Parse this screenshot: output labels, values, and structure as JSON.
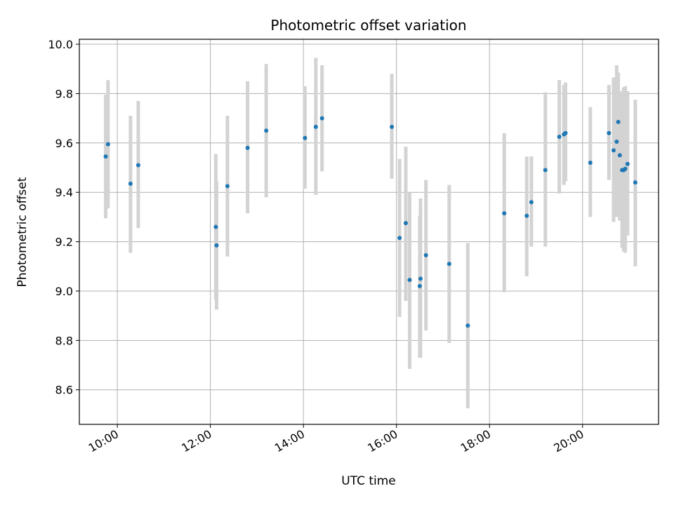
{
  "chart_data": {
    "type": "scatter",
    "title": "Photometric offset variation",
    "xlabel": "UTC time",
    "ylabel": "Photometric offset",
    "grid": true,
    "error_bar_color": "#d3d3d3",
    "marker_color": "#1f77b4",
    "xlim": [
      "09:11",
      "21:38"
    ],
    "ylim": [
      8.46,
      10.02
    ],
    "x_ticks": [
      "10:00",
      "12:00",
      "14:00",
      "16:00",
      "18:00",
      "20:00"
    ],
    "y_ticks": [
      "8.6",
      "8.8",
      "9.0",
      "9.2",
      "9.4",
      "9.6",
      "9.8",
      "10.0"
    ],
    "series": [
      {
        "points": [
          {
            "x": "09:45",
            "y": 9.545,
            "err_low": 9.295,
            "err_high": 9.795
          },
          {
            "x": "09:48",
            "y": 9.595,
            "err_low": 9.335,
            "err_high": 9.855
          },
          {
            "x": "10:17",
            "y": 9.435,
            "err_low": 9.155,
            "err_high": 9.71
          },
          {
            "x": "10:27",
            "y": 9.51,
            "err_low": 9.255,
            "err_high": 9.77
          },
          {
            "x": "12:07",
            "y": 9.26,
            "err_low": 8.965,
            "err_high": 9.555
          },
          {
            "x": "12:08",
            "y": 9.185,
            "err_low": 8.925,
            "err_high": 9.445
          },
          {
            "x": "12:22",
            "y": 9.425,
            "err_low": 9.14,
            "err_high": 9.71
          },
          {
            "x": "12:48",
            "y": 9.58,
            "err_low": 9.315,
            "err_high": 9.85
          },
          {
            "x": "13:12",
            "y": 9.65,
            "err_low": 9.38,
            "err_high": 9.92
          },
          {
            "x": "14:02",
            "y": 9.62,
            "err_low": 9.415,
            "err_high": 9.83
          },
          {
            "x": "14:16",
            "y": 9.665,
            "err_low": 9.39,
            "err_high": 9.945
          },
          {
            "x": "14:24",
            "y": 9.7,
            "err_low": 9.485,
            "err_high": 9.915
          },
          {
            "x": "15:54",
            "y": 9.665,
            "err_low": 9.455,
            "err_high": 9.88
          },
          {
            "x": "16:04",
            "y": 9.215,
            "err_low": 8.895,
            "err_high": 9.535
          },
          {
            "x": "16:12",
            "y": 9.275,
            "err_low": 8.96,
            "err_high": 9.585
          },
          {
            "x": "16:17",
            "y": 9.045,
            "err_low": 8.685,
            "err_high": 9.4
          },
          {
            "x": "16:30",
            "y": 9.02,
            "err_low": 8.73,
            "err_high": 9.305
          },
          {
            "x": "16:31",
            "y": 9.05,
            "err_low": 8.73,
            "err_high": 9.375
          },
          {
            "x": "16:38",
            "y": 9.145,
            "err_low": 8.84,
            "err_high": 9.45
          },
          {
            "x": "17:08",
            "y": 9.11,
            "err_low": 8.79,
            "err_high": 9.43
          },
          {
            "x": "17:32",
            "y": 8.86,
            "err_low": 8.525,
            "err_high": 9.195
          },
          {
            "x": "18:19",
            "y": 9.315,
            "err_low": 8.995,
            "err_high": 9.64
          },
          {
            "x": "18:48",
            "y": 9.305,
            "err_low": 9.06,
            "err_high": 9.545
          },
          {
            "x": "18:54",
            "y": 9.36,
            "err_low": 9.18,
            "err_high": 9.545
          },
          {
            "x": "19:12",
            "y": 9.49,
            "err_low": 9.18,
            "err_high": 9.805
          },
          {
            "x": "19:30",
            "y": 9.625,
            "err_low": 9.395,
            "err_high": 9.855
          },
          {
            "x": "19:36",
            "y": 9.635,
            "err_low": 9.43,
            "err_high": 9.835
          },
          {
            "x": "19:38",
            "y": 9.64,
            "err_low": 9.445,
            "err_high": 9.845
          },
          {
            "x": "20:10",
            "y": 9.52,
            "err_low": 9.3,
            "err_high": 9.745
          },
          {
            "x": "20:34",
            "y": 9.64,
            "err_low": 9.45,
            "err_high": 9.835
          },
          {
            "x": "20:40",
            "y": 9.57,
            "err_low": 9.28,
            "err_high": 9.865
          },
          {
            "x": "20:44",
            "y": 9.605,
            "err_low": 9.3,
            "err_high": 9.915
          },
          {
            "x": "20:46",
            "y": 9.685,
            "err_low": 9.49,
            "err_high": 9.885
          },
          {
            "x": "20:48",
            "y": 9.55,
            "err_low": 9.285,
            "err_high": 9.81
          },
          {
            "x": "20:51",
            "y": 9.49,
            "err_low": 9.175,
            "err_high": 9.805
          },
          {
            "x": "20:53",
            "y": 9.49,
            "err_low": 9.16,
            "err_high": 9.825
          },
          {
            "x": "20:55",
            "y": 9.495,
            "err_low": 9.155,
            "err_high": 9.83
          },
          {
            "x": "20:58",
            "y": 9.515,
            "err_low": 9.225,
            "err_high": 9.81
          },
          {
            "x": "21:08",
            "y": 9.44,
            "err_low": 9.1,
            "err_high": 9.775
          }
        ]
      }
    ]
  }
}
